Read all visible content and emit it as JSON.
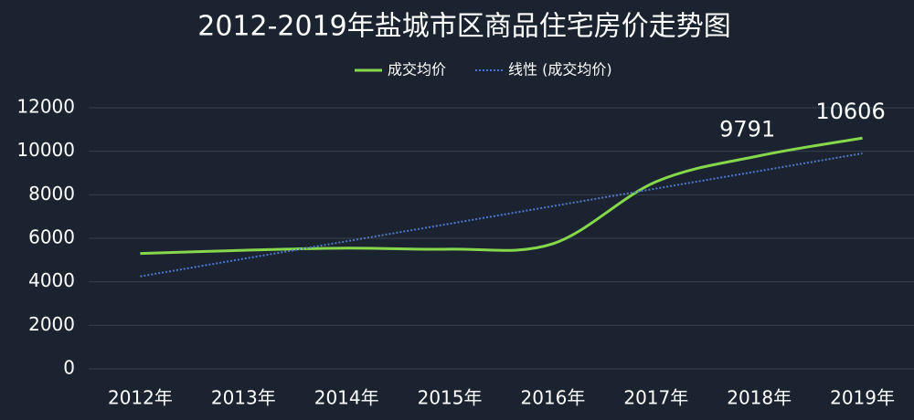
{
  "chart_data": {
    "type": "line",
    "title": "2012-2019年盐城市区商品住宅房价走势图",
    "categories": [
      "2012年",
      "2013年",
      "2014年",
      "2015年",
      "2016年",
      "2017年",
      "2018年",
      "2019年"
    ],
    "series": [
      {
        "name": "成交均价",
        "color": "#86d84b",
        "style": "solid",
        "smooth": true,
        "values": [
          5300,
          5450,
          5550,
          5500,
          5750,
          8600,
          9791,
          10606
        ],
        "value_labels": [
          null,
          null,
          null,
          null,
          null,
          null,
          "9791",
          "10606"
        ]
      },
      {
        "name": "线性 (成交均价)",
        "color": "#4f78c8",
        "style": "dotted",
        "smooth": false,
        "values": [
          4250,
          5057,
          5864,
          6671,
          7479,
          8286,
          9093,
          9900
        ]
      }
    ],
    "ylim": [
      0,
      12000
    ],
    "yticks": [
      0,
      2000,
      4000,
      6000,
      8000,
      10000,
      12000
    ],
    "grid": true
  }
}
